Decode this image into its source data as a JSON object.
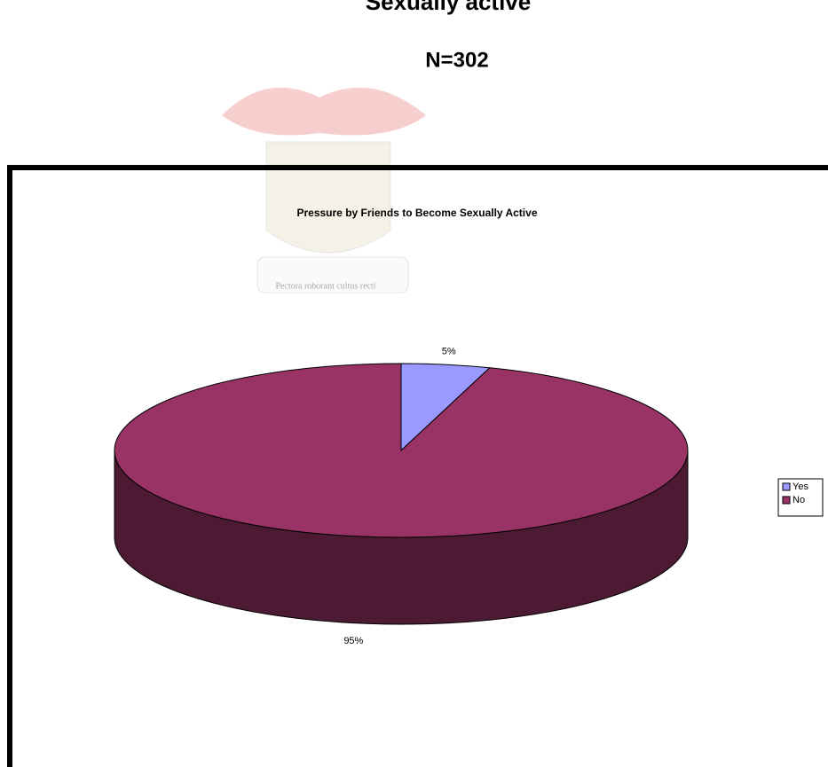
{
  "header": {
    "title": "Sexually active",
    "subtitle": "N=302"
  },
  "watermark": "Pectora roborant cultus recti",
  "chart_data": {
    "type": "pie",
    "title": "Pressure by Friends to Become Sexually Active",
    "categories": [
      "Yes",
      "No"
    ],
    "values": [
      5,
      95
    ],
    "value_labels": [
      "5%",
      "95%"
    ],
    "colors": [
      "#9999ff",
      "#993366"
    ],
    "legend": "right"
  }
}
